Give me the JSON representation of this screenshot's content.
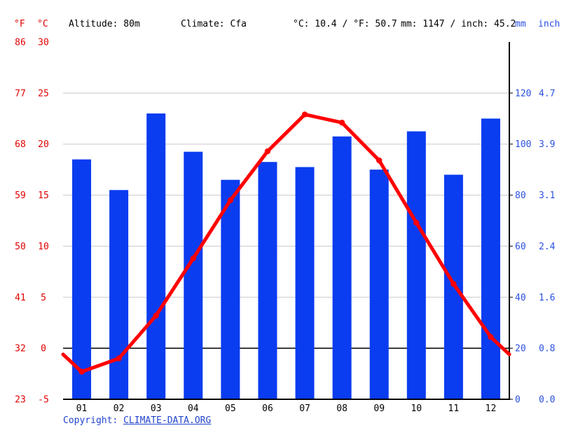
{
  "header": {
    "fahrenheit_label": "°F",
    "celsius_label": "°C",
    "altitude": "Altitude: 80m",
    "climate": "Climate: Cfa",
    "avg_temp": "°C: 10.4 / °F: 50.7",
    "precip_total": "mm: 1147 / inch: 45.2",
    "mm_label": "mm",
    "inch_label": "inch"
  },
  "footer": {
    "copyright_prefix": "Copyright: ",
    "copyright_link": "CLIMATE-DATA.ORG"
  },
  "colors": {
    "bar": "#0a3cf0",
    "line": "#ff0000",
    "left_axis_labels": "#e00000",
    "right_axis_labels": "#2b50e0",
    "grid": "#c8c8c8",
    "axis": "#000000",
    "month_labels": "#000000"
  },
  "chart_data": {
    "type": "bar+line combo (climate chart)",
    "title": "Climate graph: Altitude 80m, Climate Cfa, mean temp 10.4 °C / 50.7 °F, annual precipitation 1147 mm / 45.2 inch",
    "categories": [
      "01",
      "02",
      "03",
      "04",
      "05",
      "06",
      "07",
      "08",
      "09",
      "10",
      "11",
      "12"
    ],
    "series": [
      {
        "name": "Precipitation",
        "type": "bar",
        "unit": "mm",
        "values": [
          94,
          82,
          112,
          97,
          86,
          93,
          91,
          103,
          90,
          105,
          88,
          110
        ]
      },
      {
        "name": "Temperature",
        "type": "line",
        "unit": "°C",
        "values": [
          -2.3,
          -1.0,
          3.2,
          8.8,
          14.5,
          19.3,
          22.9,
          22.1,
          18.4,
          12.3,
          6.3,
          1.1
        ]
      }
    ],
    "axes": {
      "left_f_ticks": [
        "86",
        "77",
        "68",
        "59",
        "50",
        "41",
        "32",
        "23"
      ],
      "left_c_ticks": [
        30,
        25,
        20,
        15,
        10,
        5,
        0,
        -5
      ],
      "right_mm_ticks": [
        120,
        100,
        80,
        60,
        40,
        20,
        0
      ],
      "right_inch_ticks": [
        "4.7",
        "3.9",
        "3.1",
        "2.4",
        "1.6",
        "0.8",
        "0.0"
      ],
      "c_range": [
        -5,
        30
      ],
      "mm_range": [
        0,
        140
      ],
      "grid": "horizontal gridlines at 5°C steps, black zero line at 0°C",
      "legend_position": "none"
    }
  }
}
